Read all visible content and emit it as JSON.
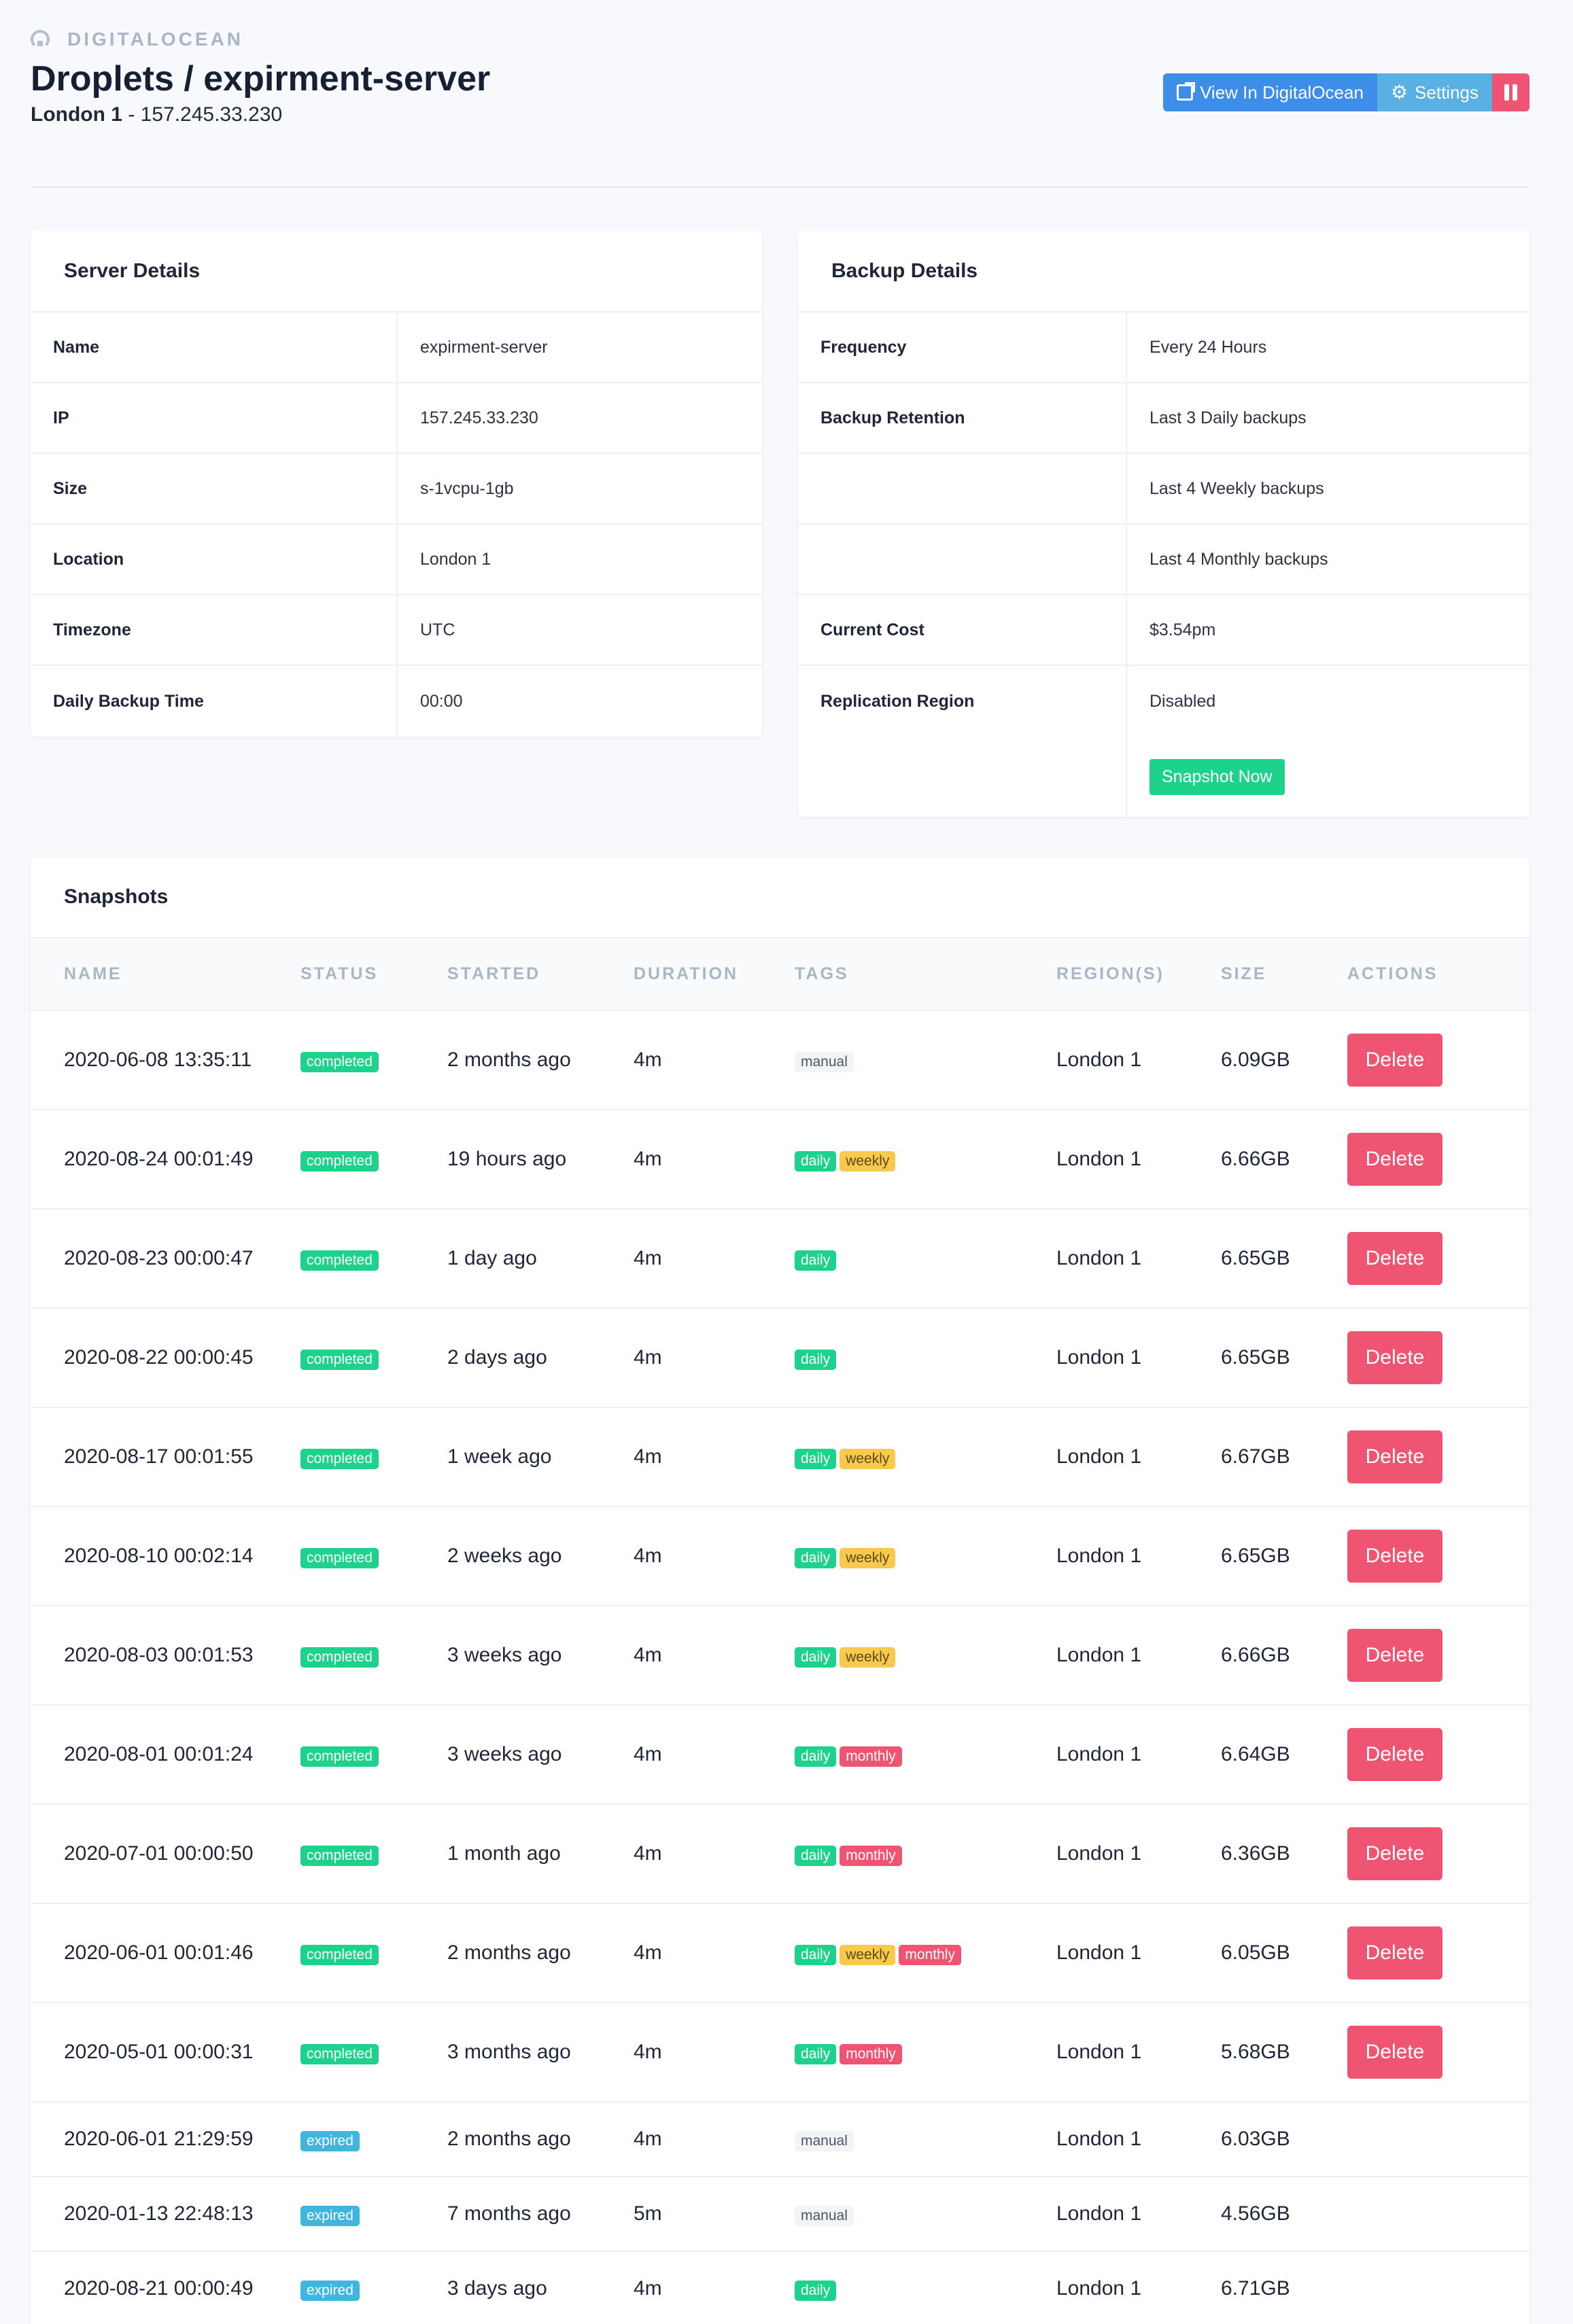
{
  "header": {
    "brand": "DIGITALOCEAN",
    "title": "Droplets / expirment-server",
    "location": "London 1",
    "separator": " - ",
    "ip": "157.245.33.230",
    "buttons": {
      "view": "View In DigitalOcean",
      "settings": "Settings"
    }
  },
  "server_details": {
    "title": "Server Details",
    "rows": [
      {
        "key": "Name",
        "value": "expirment-server"
      },
      {
        "key": "IP",
        "value": "157.245.33.230"
      },
      {
        "key": "Size",
        "value": "s-1vcpu-1gb"
      },
      {
        "key": "Location",
        "value": "London 1"
      },
      {
        "key": "Timezone",
        "value": "UTC"
      },
      {
        "key": "Daily Backup Time",
        "value": "00:00"
      }
    ]
  },
  "backup_details": {
    "title": "Backup Details",
    "rows": [
      {
        "key": "Frequency",
        "value": "Every 24 Hours"
      },
      {
        "key": "Backup Retention",
        "value": "Last 3 Daily backups"
      },
      {
        "key": "",
        "value": "Last 4 Weekly backups"
      },
      {
        "key": "",
        "value": "Last 4 Monthly backups"
      },
      {
        "key": "Current Cost",
        "value": "$3.54pm"
      },
      {
        "key": "Replication Region",
        "value": "Disabled"
      }
    ],
    "snapshot_button": "Snapshot Now"
  },
  "snapshots": {
    "title": "Snapshots",
    "columns": [
      "NAME",
      "STATUS",
      "STARTED",
      "DURATION",
      "TAGS",
      "REGION(S)",
      "SIZE",
      "ACTIONS"
    ],
    "delete_label": "Delete",
    "rows": [
      {
        "name": "2020-06-08 13:35:11",
        "status": "completed",
        "started": "2 months ago",
        "duration": "4m",
        "tags": [
          "manual"
        ],
        "region": "London 1",
        "size": "6.09GB",
        "deletable": true
      },
      {
        "name": "2020-08-24 00:01:49",
        "status": "completed",
        "started": "19 hours ago",
        "duration": "4m",
        "tags": [
          "daily",
          "weekly"
        ],
        "region": "London 1",
        "size": "6.66GB",
        "deletable": true
      },
      {
        "name": "2020-08-23 00:00:47",
        "status": "completed",
        "started": "1 day ago",
        "duration": "4m",
        "tags": [
          "daily"
        ],
        "region": "London 1",
        "size": "6.65GB",
        "deletable": true
      },
      {
        "name": "2020-08-22 00:00:45",
        "status": "completed",
        "started": "2 days ago",
        "duration": "4m",
        "tags": [
          "daily"
        ],
        "region": "London 1",
        "size": "6.65GB",
        "deletable": true
      },
      {
        "name": "2020-08-17 00:01:55",
        "status": "completed",
        "started": "1 week ago",
        "duration": "4m",
        "tags": [
          "daily",
          "weekly"
        ],
        "region": "London 1",
        "size": "6.67GB",
        "deletable": true
      },
      {
        "name": "2020-08-10 00:02:14",
        "status": "completed",
        "started": "2 weeks ago",
        "duration": "4m",
        "tags": [
          "daily",
          "weekly"
        ],
        "region": "London 1",
        "size": "6.65GB",
        "deletable": true
      },
      {
        "name": "2020-08-03 00:01:53",
        "status": "completed",
        "started": "3 weeks ago",
        "duration": "4m",
        "tags": [
          "daily",
          "weekly"
        ],
        "region": "London 1",
        "size": "6.66GB",
        "deletable": true
      },
      {
        "name": "2020-08-01 00:01:24",
        "status": "completed",
        "started": "3 weeks ago",
        "duration": "4m",
        "tags": [
          "daily",
          "monthly"
        ],
        "region": "London 1",
        "size": "6.64GB",
        "deletable": true
      },
      {
        "name": "2020-07-01 00:00:50",
        "status": "completed",
        "started": "1 month ago",
        "duration": "4m",
        "tags": [
          "daily",
          "monthly"
        ],
        "region": "London 1",
        "size": "6.36GB",
        "deletable": true
      },
      {
        "name": "2020-06-01 00:01:46",
        "status": "completed",
        "started": "2 months ago",
        "duration": "4m",
        "tags": [
          "daily",
          "weekly",
          "monthly"
        ],
        "region": "London 1",
        "size": "6.05GB",
        "deletable": true
      },
      {
        "name": "2020-05-01 00:00:31",
        "status": "completed",
        "started": "3 months ago",
        "duration": "4m",
        "tags": [
          "daily",
          "monthly"
        ],
        "region": "London 1",
        "size": "5.68GB",
        "deletable": true
      },
      {
        "name": "2020-06-01 21:29:59",
        "status": "expired",
        "started": "2 months ago",
        "duration": "4m",
        "tags": [
          "manual"
        ],
        "region": "London 1",
        "size": "6.03GB",
        "deletable": false
      },
      {
        "name": "2020-01-13 22:48:13",
        "status": "expired",
        "started": "7 months ago",
        "duration": "5m",
        "tags": [
          "manual"
        ],
        "region": "London 1",
        "size": "4.56GB",
        "deletable": false
      },
      {
        "name": "2020-08-21 00:00:49",
        "status": "expired",
        "started": "3 days ago",
        "duration": "4m",
        "tags": [
          "daily"
        ],
        "region": "London 1",
        "size": "6.71GB",
        "deletable": false
      }
    ]
  }
}
